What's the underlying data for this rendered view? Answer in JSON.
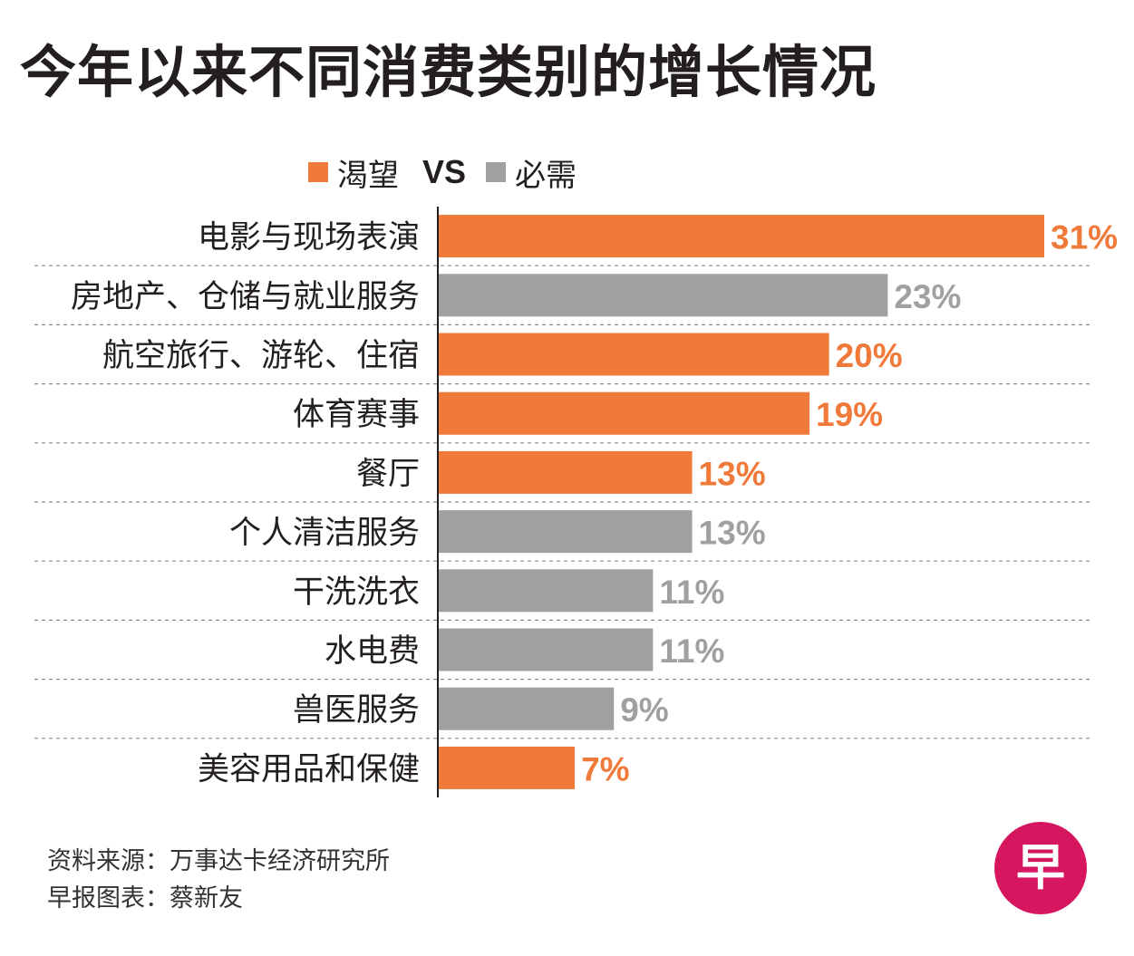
{
  "title": "今年以来不同消费类别的增长情况",
  "legend": {
    "discretionary": "渴望",
    "vs": "VS",
    "essential": "必需"
  },
  "colors": {
    "discretionary": "#f07a3a",
    "essential": "#9fa0a2",
    "axis": "#231f20",
    "divider": "#8a8a8a",
    "logo": "#d6165f"
  },
  "chart_data": {
    "type": "bar",
    "orientation": "horizontal",
    "title": "今年以来不同消费类别的增长情况",
    "xlabel": "",
    "ylabel": "",
    "xlim": [
      0,
      31
    ],
    "grid": false,
    "legend_position": "top",
    "series": [
      {
        "name": "渴望",
        "key": "discretionary"
      },
      {
        "name": "必需",
        "key": "essential"
      }
    ],
    "categories": [
      "电影与现场表演",
      "房地产、仓储与就业服务",
      "航空旅行、游轮、住宿",
      "体育赛事",
      "餐厅",
      "个人清洁服务",
      "干洗洗衣",
      "水电费",
      "兽医服务",
      "美容用品和保健"
    ],
    "values": [
      31,
      23,
      20,
      19,
      13,
      13,
      11,
      11,
      9,
      7
    ],
    "value_labels": [
      "31%",
      "23%",
      "20%",
      "19%",
      "13%",
      "13%",
      "11%",
      "11%",
      "9%",
      "7%"
    ],
    "types": [
      "discretionary",
      "essential",
      "discretionary",
      "discretionary",
      "discretionary",
      "essential",
      "essential",
      "essential",
      "essential",
      "discretionary"
    ]
  },
  "source": {
    "line1": "资料来源：万事达卡经济研究所",
    "line2": "早报图表：蔡新友"
  },
  "logo": {
    "text": "早"
  }
}
